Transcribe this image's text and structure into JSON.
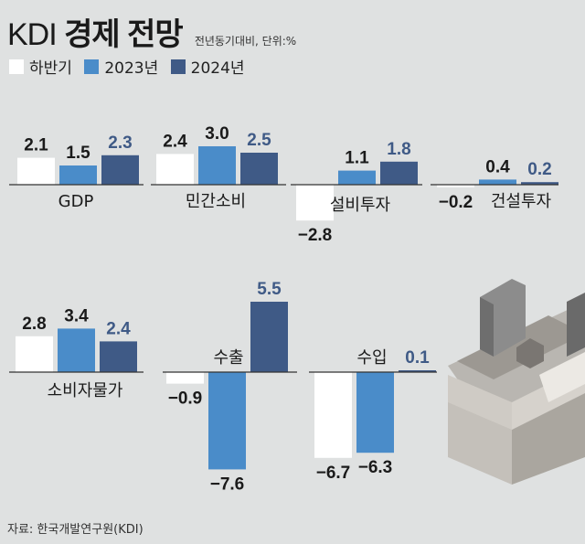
{
  "header": {
    "title_prefix": "KDI",
    "title_main": "경제 전망",
    "subtitle": "전년동기대비, 단위:%"
  },
  "legend": [
    {
      "label": "하반기",
      "color": "#ffffff"
    },
    {
      "label": "2023년",
      "color": "#4a8cc9"
    },
    {
      "label": "2024년",
      "color": "#3f5a86"
    }
  ],
  "source": "자료: 한국개발연구원(KDI)",
  "colors": {
    "h2": "#ffffff",
    "y2023": "#4a8cc9",
    "y2024": "#3f5a86",
    "label_dark": "#1a1a1a",
    "label_2024": "#3f5a86"
  },
  "chart_data": {
    "type": "bar",
    "series_names": [
      "하반기",
      "2023년",
      "2024년"
    ],
    "categories": [
      {
        "name": "GDP",
        "values": [
          2.1,
          1.5,
          2.3
        ],
        "labels": [
          "2.1",
          "1.5",
          "2.3"
        ]
      },
      {
        "name": "민간소비",
        "values": [
          2.4,
          3.0,
          2.5
        ],
        "labels": [
          "2.4",
          "3.0",
          "2.5"
        ]
      },
      {
        "name": "설비투자",
        "values": [
          -2.8,
          1.1,
          1.8
        ],
        "labels": [
          "−2.8",
          "1.1",
          "1.8"
        ]
      },
      {
        "name": "건설투자",
        "values": [
          -0.2,
          0.4,
          0.2
        ],
        "labels": [
          "−0.2",
          "0.4",
          "0.2"
        ]
      },
      {
        "name": "소비자물가",
        "values": [
          2.8,
          3.4,
          2.4
        ],
        "labels": [
          "2.8",
          "3.4",
          "2.4"
        ]
      },
      {
        "name": "수출",
        "values": [
          -0.9,
          -7.6,
          5.5
        ],
        "labels": [
          "−0.9",
          "−7.6",
          "5.5"
        ]
      },
      {
        "name": "수입",
        "values": [
          -6.7,
          -6.3,
          0.1
        ],
        "labels": [
          "−6.7",
          "−6.3",
          "0.1"
        ]
      }
    ]
  }
}
